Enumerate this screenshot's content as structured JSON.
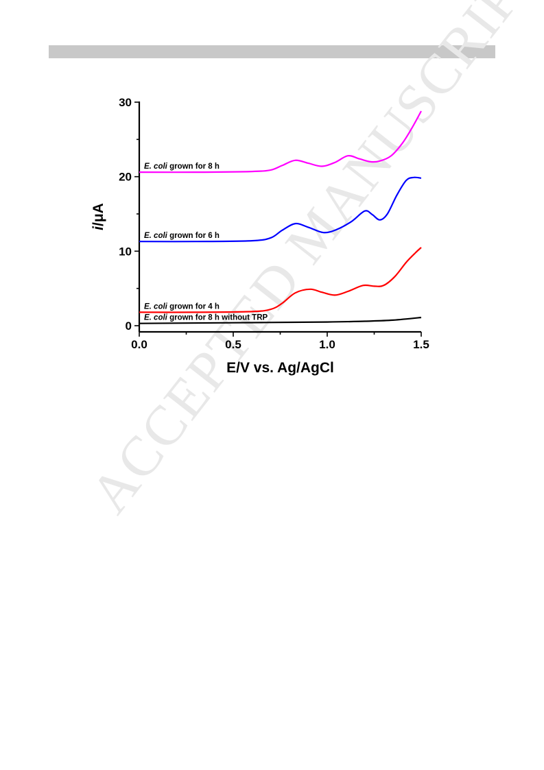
{
  "header_bar": "",
  "watermark": "ACCEPTED MANUSCRIPT",
  "chart_data": {
    "type": "line",
    "title": "",
    "xlabel": "E/V vs. Ag/AgCl",
    "ylabel_italic": "i",
    "ylabel_rest": "/μA",
    "xlim": [
      0.0,
      1.5
    ],
    "ylim": [
      -1,
      30
    ],
    "x_ticks": [
      "0.0",
      "0.5",
      "1.0",
      "1.5"
    ],
    "y_ticks": [
      "0",
      "10",
      "20",
      "30"
    ],
    "grid": false,
    "legend": "inline labels",
    "series": [
      {
        "label_italic": "E. coli",
        "label_rest": " grown for 8 h",
        "color": "#ff00ff",
        "points": [
          [
            0.0,
            20.6
          ],
          [
            0.3,
            20.6
          ],
          [
            0.6,
            20.7
          ],
          [
            0.7,
            20.9
          ],
          [
            0.76,
            21.5
          ],
          [
            0.83,
            22.2
          ],
          [
            0.9,
            21.8
          ],
          [
            0.97,
            21.4
          ],
          [
            1.04,
            21.9
          ],
          [
            1.11,
            22.8
          ],
          [
            1.17,
            22.4
          ],
          [
            1.23,
            22.0
          ],
          [
            1.28,
            22.1
          ],
          [
            1.34,
            22.8
          ],
          [
            1.4,
            24.5
          ],
          [
            1.45,
            26.5
          ],
          [
            1.5,
            28.8
          ]
        ]
      },
      {
        "label_italic": "E. coli",
        "label_rest": " grown for 6 h",
        "color": "#0000ff",
        "points": [
          [
            0.0,
            11.3
          ],
          [
            0.3,
            11.3
          ],
          [
            0.6,
            11.4
          ],
          [
            0.7,
            11.8
          ],
          [
            0.76,
            12.8
          ],
          [
            0.83,
            13.7
          ],
          [
            0.9,
            13.2
          ],
          [
            0.98,
            12.5
          ],
          [
            1.05,
            12.9
          ],
          [
            1.13,
            14.0
          ],
          [
            1.2,
            15.4
          ],
          [
            1.24,
            14.9
          ],
          [
            1.28,
            14.2
          ],
          [
            1.32,
            15.0
          ],
          [
            1.37,
            17.5
          ],
          [
            1.42,
            19.5
          ],
          [
            1.46,
            19.9
          ],
          [
            1.5,
            19.8
          ]
        ]
      },
      {
        "label_italic": "E. coli",
        "label_rest": " grown for 4 h",
        "color": "#ff0000",
        "points": [
          [
            0.0,
            1.8
          ],
          [
            0.3,
            1.8
          ],
          [
            0.6,
            1.9
          ],
          [
            0.7,
            2.2
          ],
          [
            0.76,
            3.0
          ],
          [
            0.83,
            4.4
          ],
          [
            0.91,
            4.9
          ],
          [
            0.97,
            4.5
          ],
          [
            1.04,
            4.1
          ],
          [
            1.11,
            4.6
          ],
          [
            1.19,
            5.4
          ],
          [
            1.25,
            5.3
          ],
          [
            1.3,
            5.4
          ],
          [
            1.36,
            6.6
          ],
          [
            1.42,
            8.5
          ],
          [
            1.47,
            9.8
          ],
          [
            1.5,
            10.5
          ]
        ]
      },
      {
        "label_italic": "E. coli",
        "label_rest": " grown for 8 h without TRP",
        "color": "#000000",
        "points": [
          [
            0.0,
            0.3
          ],
          [
            0.5,
            0.4
          ],
          [
            1.0,
            0.5
          ],
          [
            1.2,
            0.6
          ],
          [
            1.35,
            0.75
          ],
          [
            1.5,
            1.1
          ]
        ]
      }
    ]
  }
}
